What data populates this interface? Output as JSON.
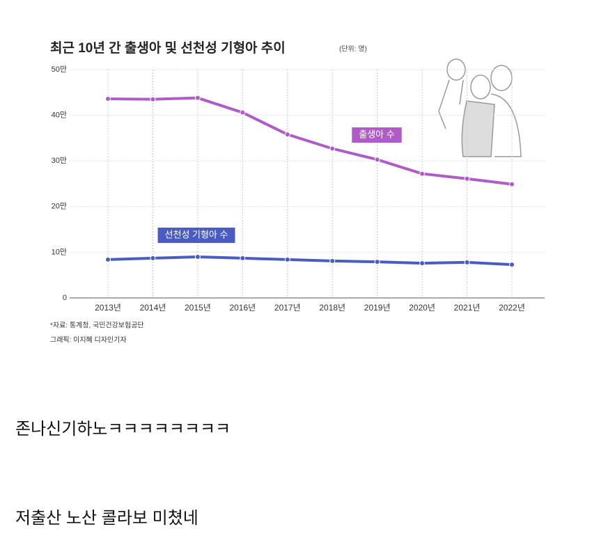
{
  "chart_data": {
    "type": "line",
    "title": "최근 10년 간 출생아 및 선천성 기형아 추이",
    "unit_note": "(단위: 명)",
    "source": "*자료: 통계청, 국민건강보험공단",
    "credit": "그래픽: 이지혜 디자인기자",
    "categories": [
      "2013년",
      "2014년",
      "2015년",
      "2016년",
      "2017년",
      "2018년",
      "2019년",
      "2020년",
      "2021년",
      "2022년"
    ],
    "series": [
      {
        "name": "출생아 수",
        "color": "#b05cc6",
        "values": [
          436000,
          435000,
          438000,
          406000,
          358000,
          327000,
          303000,
          272000,
          261000,
          249000
        ]
      },
      {
        "name": "선천성 기형아 수",
        "color": "#4a5cc0",
        "values": [
          84000,
          87000,
          90000,
          87000,
          84000,
          81000,
          79000,
          76000,
          78000,
          73000
        ]
      }
    ],
    "ylim": [
      0,
      500000
    ],
    "yticks": [
      0,
      {
        "value": 100000,
        "label": "10만"
      },
      {
        "value": 200000,
        "label": "20만"
      },
      {
        "value": 300000,
        "label": "30만"
      },
      {
        "value": 400000,
        "label": "40만"
      },
      {
        "value": 500000,
        "label": "50만"
      }
    ],
    "grid": true
  },
  "comments": [
    "존나신기하노ㅋㅋㅋㅋㅋㅋㅋㅋ",
    "저출산 노산 콜라보 미쳤네"
  ]
}
